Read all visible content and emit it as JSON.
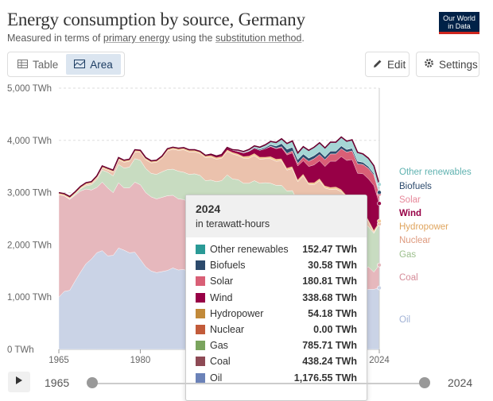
{
  "header": {
    "title": "Energy consumption by source, Germany",
    "subtitle_prefix": "Measured in terms of ",
    "subtitle_link1": "primary energy",
    "subtitle_mid": " using the ",
    "subtitle_link2": "substitution method",
    "subtitle_suffix": ".",
    "logo_line1": "Our World",
    "logo_line2": "in Data"
  },
  "tabs": {
    "table_label": "Table",
    "area_label": "Area",
    "active": "Area"
  },
  "toolbar": {
    "edit_label": "Edit",
    "settings_label": "Settings"
  },
  "chart_data": {
    "type": "area",
    "stacked": true,
    "title": "Energy consumption by source, Germany",
    "subtitle": "Measured in terms of primary energy using the substitution method.",
    "unit": "TWh",
    "ylim": [
      0,
      5000
    ],
    "y_ticks": [
      "0 TWh",
      "1,000 TWh",
      "2,000 TWh",
      "3,000 TWh",
      "4,000 TWh",
      "5,000 TWh"
    ],
    "x_ticks": [
      "1965",
      "1980",
      "2024"
    ],
    "x": [
      1965,
      1966,
      1967,
      1968,
      1969,
      1970,
      1971,
      1972,
      1973,
      1974,
      1975,
      1976,
      1977,
      1978,
      1979,
      1980,
      1981,
      1982,
      1983,
      1984,
      1985,
      1986,
      1987,
      1988,
      1989,
      1990,
      1991,
      1992,
      1993,
      1994,
      1995,
      1996,
      1997,
      1998,
      1999,
      2000,
      2001,
      2002,
      2003,
      2004,
      2005,
      2006,
      2007,
      2008,
      2009,
      2010,
      2011,
      2012,
      2013,
      2014,
      2015,
      2016,
      2017,
      2018,
      2019,
      2020,
      2021,
      2022,
      2023,
      2024
    ],
    "grid": true,
    "series": [
      {
        "name": "Oil",
        "color": "#cad3e6",
        "values": [
          1000,
          1110,
          1130,
          1310,
          1480,
          1640,
          1730,
          1850,
          1890,
          1790,
          1800,
          1940,
          1900,
          1850,
          1860,
          1720,
          1580,
          1500,
          1470,
          1490,
          1510,
          1560,
          1520,
          1530,
          1480,
          1510,
          1560,
          1540,
          1570,
          1550,
          1560,
          1590,
          1570,
          1570,
          1520,
          1470,
          1520,
          1460,
          1440,
          1440,
          1450,
          1440,
          1320,
          1380,
          1310,
          1300,
          1280,
          1280,
          1320,
          1290,
          1290,
          1300,
          1320,
          1260,
          1280,
          1110,
          1090,
          1150,
          1150,
          1176.55
        ]
      },
      {
        "name": "Coal",
        "color": "#e6b8bd",
        "values": [
          1960,
          1830,
          1740,
          1640,
          1550,
          1430,
          1320,
          1250,
          1310,
          1300,
          1200,
          1250,
          1190,
          1240,
          1340,
          1430,
          1420,
          1420,
          1410,
          1420,
          1430,
          1390,
          1360,
          1340,
          1330,
          1250,
          1120,
          1010,
          950,
          930,
          900,
          900,
          860,
          840,
          810,
          860,
          850,
          850,
          870,
          840,
          810,
          830,
          870,
          800,
          700,
          760,
          750,
          780,
          790,
          740,
          730,
          690,
          620,
          590,
          460,
          370,
          430,
          430,
          330,
          438.24
        ]
      },
      {
        "name": "Gas",
        "color": "#c8dcc1",
        "values": [
          0,
          0,
          10,
          20,
          40,
          60,
          100,
          150,
          230,
          300,
          320,
          350,
          380,
          400,
          450,
          470,
          460,
          450,
          470,
          490,
          500,
          500,
          530,
          520,
          540,
          600,
          650,
          680,
          720,
          730,
          770,
          850,
          830,
          840,
          850,
          850,
          860,
          870,
          880,
          900,
          880,
          870,
          840,
          860,
          820,
          860,
          810,
          810,
          850,
          780,
          780,
          840,
          870,
          850,
          890,
          870,
          900,
          770,
          740,
          785.71
        ]
      },
      {
        "name": "Nuclear",
        "color": "#ebc2ad",
        "values": [
          0,
          0,
          5,
          5,
          10,
          20,
          20,
          30,
          40,
          40,
          70,
          90,
          110,
          110,
          130,
          150,
          170,
          200,
          230,
          260,
          360,
          380,
          400,
          430,
          430,
          420,
          420,
          440,
          440,
          430,
          430,
          450,
          480,
          460,
          480,
          480,
          480,
          460,
          460,
          470,
          460,
          470,
          400,
          420,
          380,
          400,
          320,
          280,
          270,
          280,
          260,
          240,
          210,
          210,
          210,
          180,
          200,
          100,
          20,
          0
        ]
      },
      {
        "name": "Hydropower",
        "color": "#f1c896",
        "values": [
          40,
          40,
          40,
          40,
          40,
          40,
          40,
          40,
          40,
          40,
          40,
          40,
          40,
          40,
          40,
          40,
          40,
          40,
          40,
          40,
          40,
          40,
          40,
          40,
          40,
          40,
          40,
          40,
          40,
          40,
          40,
          40,
          40,
          40,
          40,
          50,
          50,
          50,
          40,
          50,
          50,
          50,
          50,
          50,
          50,
          50,
          40,
          50,
          50,
          50,
          50,
          50,
          50,
          45,
          50,
          50,
          50,
          45,
          55,
          54.18
        ]
      },
      {
        "name": "Wind",
        "color": "#970046",
        "values": [
          0,
          0,
          0,
          0,
          0,
          0,
          0,
          0,
          0,
          0,
          0,
          0,
          0,
          0,
          0,
          0,
          0,
          0,
          0,
          0,
          0,
          0,
          0,
          0,
          0,
          0,
          0,
          5,
          10,
          15,
          20,
          25,
          30,
          40,
          60,
          80,
          90,
          120,
          150,
          180,
          190,
          200,
          240,
          250,
          250,
          240,
          300,
          330,
          330,
          360,
          490,
          480,
          620,
          660,
          740,
          790,
          690,
          770,
          840,
          338.68
        ]
      },
      {
        "name": "Solar",
        "color": "#d95f76",
        "values": [
          0,
          0,
          0,
          0,
          0,
          0,
          0,
          0,
          0,
          0,
          0,
          0,
          0,
          0,
          0,
          0,
          0,
          0,
          0,
          0,
          0,
          0,
          0,
          0,
          0,
          0,
          0,
          0,
          0,
          0,
          0,
          0,
          0,
          0,
          0,
          0,
          0,
          0,
          0,
          10,
          10,
          20,
          30,
          40,
          50,
          70,
          100,
          120,
          120,
          130,
          140,
          140,
          150,
          160,
          170,
          180,
          180,
          200,
          200,
          180.81
        ]
      },
      {
        "name": "Biofuels",
        "color": "#2c4a6c",
        "values": [
          0,
          0,
          0,
          0,
          0,
          0,
          0,
          0,
          0,
          0,
          0,
          0,
          0,
          0,
          0,
          0,
          0,
          0,
          0,
          0,
          0,
          0,
          0,
          0,
          0,
          0,
          0,
          0,
          0,
          0,
          0,
          0,
          0,
          5,
          5,
          10,
          15,
          20,
          25,
          30,
          40,
          60,
          80,
          70,
          70,
          60,
          60,
          60,
          55,
          55,
          55,
          55,
          55,
          50,
          50,
          50,
          40,
          35,
          30,
          30.58
        ]
      },
      {
        "name": "Other renewables",
        "color": "#a5d6d5",
        "values": [
          0,
          0,
          0,
          0,
          0,
          0,
          0,
          0,
          0,
          0,
          0,
          0,
          0,
          0,
          0,
          0,
          0,
          0,
          0,
          0,
          0,
          0,
          0,
          0,
          0,
          0,
          0,
          0,
          5,
          5,
          10,
          10,
          10,
          20,
          20,
          25,
          30,
          40,
          50,
          60,
          70,
          90,
          110,
          120,
          130,
          140,
          150,
          160,
          170,
          170,
          170,
          170,
          170,
          160,
          160,
          170,
          160,
          160,
          150,
          152.47
        ]
      }
    ],
    "legend": [
      "Other renewables",
      "Biofuels",
      "Solar",
      "Wind",
      "Hydropower",
      "Nuclear",
      "Gas",
      "Coal",
      "Oil"
    ],
    "highlighted_series": "Wind",
    "tooltip": {
      "year": "2024",
      "unit": "in terawatt-hours",
      "rows": [
        {
          "name": "Other renewables",
          "value": "152.47 TWh",
          "color": "#2a9a96"
        },
        {
          "name": "Biofuels",
          "value": "30.58 TWh",
          "color": "#2c4a6c"
        },
        {
          "name": "Solar",
          "value": "180.81 TWh",
          "color": "#d95f76"
        },
        {
          "name": "Wind",
          "value": "338.68 TWh",
          "color": "#970046"
        },
        {
          "name": "Hydropower",
          "value": "54.18 TWh",
          "color": "#c28a3a"
        },
        {
          "name": "Nuclear",
          "value": "0.00 TWh",
          "color": "#c25b3a"
        },
        {
          "name": "Gas",
          "value": "785.71 TWh",
          "color": "#7aa45e"
        },
        {
          "name": "Coal",
          "value": "438.24 TWh",
          "color": "#8e4a55"
        },
        {
          "name": "Oil",
          "value": "1,176.55 TWh",
          "color": "#6b82b8"
        }
      ]
    }
  },
  "timeline": {
    "start_label": "1965",
    "end_label": "2024",
    "start_value": 1965,
    "end_value": 2024
  }
}
